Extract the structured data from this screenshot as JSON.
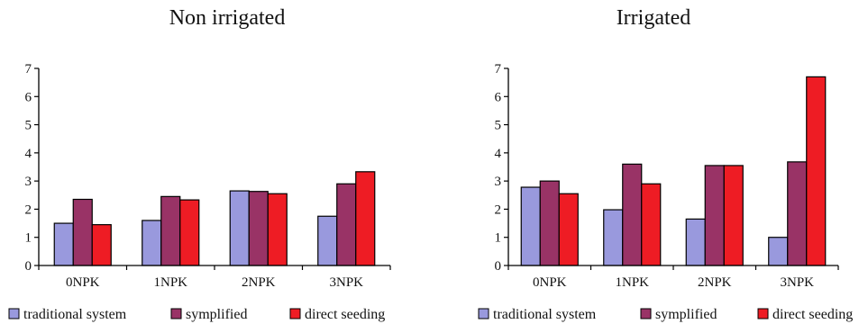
{
  "chart_data": [
    {
      "type": "bar",
      "title": "Non irrigated",
      "categories": [
        "0NPK",
        "1NPK",
        "2NPK",
        "3NPK"
      ],
      "ylim": [
        0,
        7
      ],
      "yticks": [
        "0",
        "1",
        "2",
        "3",
        "4",
        "5",
        "6",
        "7"
      ],
      "grid": false,
      "legend_position": "bottom",
      "series": [
        {
          "name": "traditional system",
          "color": "#9999dd",
          "values": [
            1.5,
            1.6,
            2.65,
            1.75
          ]
        },
        {
          "name": "symplified",
          "color": "#993366",
          "values": [
            2.35,
            2.45,
            2.63,
            2.9
          ]
        },
        {
          "name": "direct seeding",
          "color": "#ee1c24",
          "values": [
            1.45,
            2.33,
            2.55,
            3.33
          ]
        }
      ]
    },
    {
      "type": "bar",
      "title": "Irrigated",
      "categories": [
        "0NPK",
        "1NPK",
        "2NPK",
        "3NPK"
      ],
      "ylim": [
        0,
        7
      ],
      "yticks": [
        "0",
        "1",
        "2",
        "3",
        "4",
        "5",
        "6",
        "7"
      ],
      "grid": false,
      "legend_position": "bottom",
      "series": [
        {
          "name": "traditional system",
          "color": "#9999dd",
          "values": [
            2.78,
            1.98,
            1.65,
            1.0
          ]
        },
        {
          "name": "symplified",
          "color": "#993366",
          "values": [
            3.0,
            3.6,
            3.55,
            3.68
          ]
        },
        {
          "name": "direct seeding",
          "color": "#ee1c24",
          "values": [
            2.55,
            2.9,
            3.55,
            6.7
          ]
        }
      ]
    }
  ]
}
